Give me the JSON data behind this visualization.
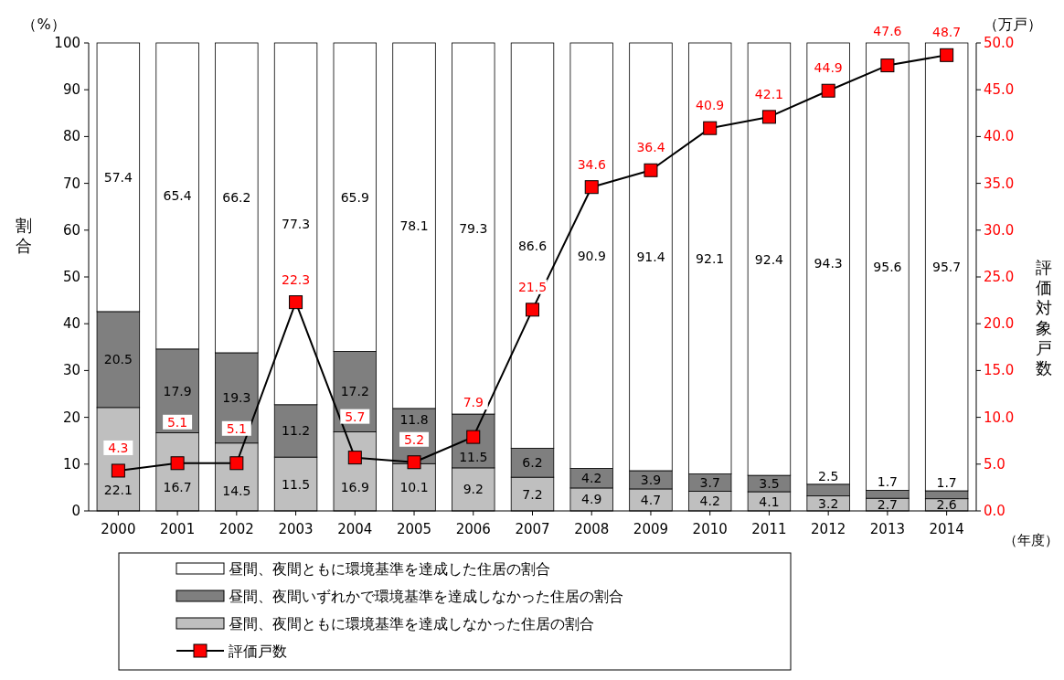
{
  "chart_data": {
    "type": "bar",
    "stacked": true,
    "categories": [
      "2000",
      "2001",
      "2002",
      "2003",
      "2004",
      "2005",
      "2006",
      "2007",
      "2008",
      "2009",
      "2010",
      "2011",
      "2012",
      "2013",
      "2014"
    ],
    "series": [
      {
        "name": "昼間、夜間ともに環境基準を達成しなかった住居の割合",
        "color": "#bfbfbf",
        "values": [
          22.1,
          16.7,
          14.5,
          11.5,
          16.9,
          10.1,
          9.2,
          7.2,
          4.9,
          4.7,
          4.2,
          4.1,
          3.2,
          2.7,
          2.6
        ]
      },
      {
        "name": "昼間、夜間いずれかで環境基準を達成しなかった住居の割合",
        "color": "#7f7f7f",
        "values": [
          20.5,
          17.9,
          19.3,
          11.2,
          17.2,
          11.8,
          11.5,
          6.2,
          4.2,
          3.9,
          3.7,
          3.5,
          2.5,
          1.7,
          1.7
        ]
      },
      {
        "name": "昼間、夜間ともに環境基準を達成した住居の割合",
        "color": "#ffffff",
        "values": [
          57.4,
          65.4,
          66.2,
          77.3,
          65.9,
          78.1,
          79.3,
          86.6,
          90.9,
          91.4,
          92.1,
          92.4,
          94.3,
          95.6,
          95.7
        ]
      },
      {
        "name": "評価戸数",
        "type": "line",
        "axis": "y2",
        "color": "#ff0000",
        "marker": "square",
        "values": [
          4.3,
          5.1,
          5.1,
          22.3,
          5.7,
          5.2,
          7.9,
          21.5,
          34.6,
          36.4,
          40.9,
          42.1,
          44.9,
          47.6,
          48.7
        ]
      }
    ],
    "ylabel": "割合",
    "y2label": "評価対象戸数",
    "xlabel": "（年度）",
    "annotations": [
      "（%）",
      "（万戸）"
    ],
    "ylim": [
      0,
      100
    ],
    "yticks": [
      0,
      10,
      20,
      30,
      40,
      50,
      60,
      70,
      80,
      90,
      100
    ],
    "y2lim": [
      0,
      50
    ],
    "y2ticks": [
      {
        "value": 0,
        "label": "0.0"
      },
      {
        "value": 5,
        "label": "5.0"
      },
      {
        "value": 10,
        "label": "10.0"
      },
      {
        "value": 15,
        "label": "15.0"
      },
      {
        "value": 20,
        "label": "20.0"
      },
      {
        "value": 25,
        "label": "25.0"
      },
      {
        "value": 30,
        "label": "30.0"
      },
      {
        "value": 35,
        "label": "35.0"
      },
      {
        "value": 40,
        "label": "40.0"
      },
      {
        "value": 45,
        "label": "45.0"
      },
      {
        "value": 50,
        "label": "50.0"
      }
    ],
    "data_labels": true,
    "legend": "bottom",
    "grid": false
  }
}
